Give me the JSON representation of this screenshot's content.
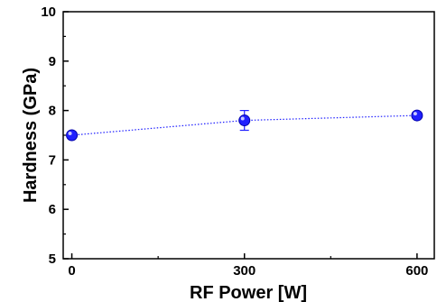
{
  "chart_data": {
    "type": "scatter",
    "xlabel": "RF Power [W]",
    "ylabel": "Hardness (GPa)",
    "xlim": [
      -15,
      630
    ],
    "ylim": [
      5,
      10
    ],
    "x_ticks": [
      0,
      300,
      600
    ],
    "y_ticks": [
      5,
      6,
      7,
      8,
      9,
      10
    ],
    "grid": false,
    "series": [
      {
        "x": [
          0,
          300,
          600
        ],
        "y": [
          7.5,
          7.8,
          7.9
        ],
        "y_error": [
          0.04,
          0.2,
          0.04
        ],
        "marker": "circle",
        "line": "dotted",
        "color": "#2020ff"
      }
    ]
  }
}
